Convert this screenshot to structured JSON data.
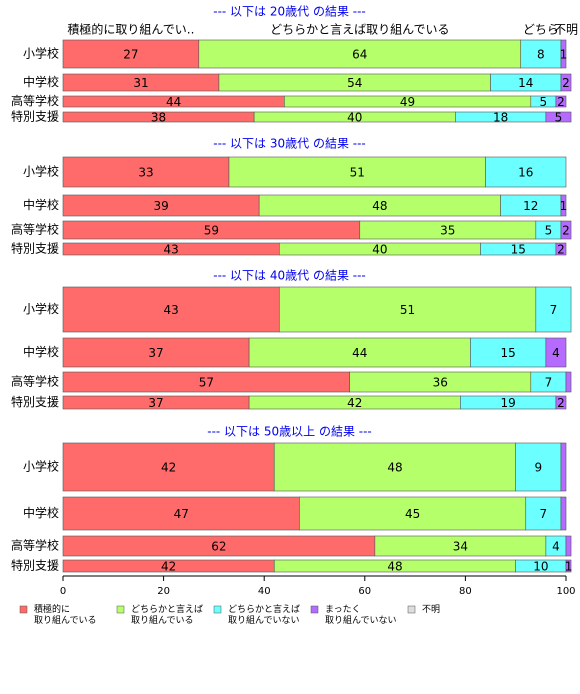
{
  "chart_data": {
    "type": "stacked_barh",
    "groups": [
      "--- 以下は 20歳代 の結果 ---",
      "--- 以下は 30歳代 の結果 ---",
      "--- 以下は 40歳代 の結果 ---",
      "--- 以下は 50歳以上 の結果 ---"
    ],
    "categories": [
      "小学校",
      "中学校",
      "高等学校",
      "特別支援",
      "小学校",
      "中学校",
      "高等学校",
      "特別支援",
      "小学校",
      "中学校",
      "高等学校",
      "特別支援",
      "小学校",
      "中学校",
      "高等学校",
      "特別支援"
    ],
    "annotations": [
      "積極的に取り組んでい..",
      "どちらかと言えば取り組んでいる",
      "どちら",
      null,
      "不明"
    ],
    "series": [
      {
        "name": "積極的に\n取り組んでいる",
        "color": "#ff6b6b",
        "values": [
          27,
          31,
          44,
          38,
          33,
          39,
          59,
          43,
          43,
          37,
          57,
          37,
          42,
          47,
          62,
          42
        ],
        "value_labels": [
          27,
          31,
          44,
          38,
          33,
          39,
          59,
          43,
          43,
          37,
          57,
          37,
          42,
          47,
          62,
          42
        ]
      },
      {
        "name": "どちらかと言えば\n取り組んでいる",
        "color": "#b5ff6b",
        "values": [
          64,
          54,
          49,
          40,
          51,
          48,
          35,
          40,
          51,
          44,
          36,
          42,
          48,
          45,
          34,
          48
        ],
        "value_labels": [
          64,
          54,
          49,
          40,
          51,
          48,
          35,
          40,
          51,
          44,
          36,
          42,
          48,
          45,
          34,
          48
        ]
      },
      {
        "name": "どちらかと言えば\n取り組んでいない",
        "color": "#6bffff",
        "values": [
          8,
          14,
          5,
          18,
          16,
          12,
          5,
          15,
          7,
          15,
          7,
          19,
          9,
          7,
          4,
          10
        ],
        "value_labels": [
          8,
          14,
          5,
          18,
          16,
          12,
          5,
          15,
          7,
          15,
          7,
          19,
          9,
          7,
          4,
          10
        ]
      },
      {
        "name": "まったく\n取り組んでいない",
        "color": "#b56bff",
        "values": [
          1,
          2,
          2,
          5,
          0,
          1,
          2,
          2,
          0,
          4,
          1,
          2,
          1,
          1,
          1,
          1
        ],
        "value_labels": [
          1,
          2,
          2,
          5,
          null,
          1,
          2,
          2,
          null,
          4,
          null,
          2,
          null,
          null,
          null,
          1
        ]
      },
      {
        "name": "不明",
        "color": "#dddddd",
        "values": [
          0,
          0,
          0,
          0,
          0,
          0,
          0,
          0,
          0,
          0,
          0,
          0,
          0,
          0,
          0,
          0
        ],
        "value_labels": [
          null,
          null,
          null,
          null,
          null,
          null,
          null,
          null,
          null,
          null,
          null,
          null,
          null,
          null,
          null,
          null
        ]
      }
    ],
    "xlim": [
      0,
      100
    ],
    "xticks": [
      0,
      20,
      40,
      60,
      80,
      100
    ],
    "legend": "bottom-left"
  }
}
